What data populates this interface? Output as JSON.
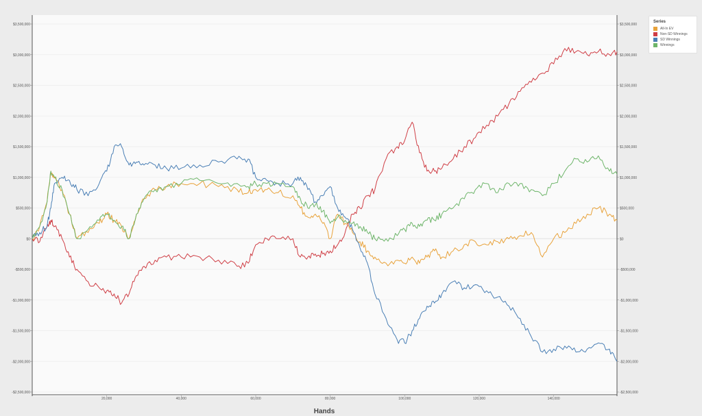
{
  "chart_data": {
    "type": "line",
    "xlabel": "Hands",
    "ylabel": "",
    "xlim": [
      0,
      157000
    ],
    "ylim": [
      -2500000,
      3500000
    ],
    "x_ticks": [
      20000,
      40000,
      60000,
      80000,
      100000,
      120000,
      140000
    ],
    "x_tick_labels": [
      "20,000",
      "40,000",
      "60,000",
      "80,000",
      "100,000",
      "120,000",
      "140,000"
    ],
    "y_ticks": [
      -2500000,
      -2000000,
      -1500000,
      -1000000,
      -500000,
      0,
      500000,
      1000000,
      1500000,
      2000000,
      2500000,
      3000000,
      3500000
    ],
    "y_tick_labels": [
      "-$2,500,000",
      "-$2,000,000",
      "-$1,500,000",
      "-$1,000,000",
      "-$500,000",
      "$0",
      "$500,000",
      "$1,000,000",
      "$1,500,000",
      "$2,000,000",
      "$2,500,000",
      "$3,000,000",
      "$3,500,000"
    ],
    "grid": true,
    "legend_title": "Series",
    "legend_position": "top-right",
    "x": [
      0,
      2000,
      4000,
      5000,
      6000,
      8000,
      10000,
      12000,
      15000,
      18000,
      20000,
      22000,
      24000,
      26000,
      28000,
      30000,
      33000,
      36000,
      40000,
      45000,
      50000,
      55000,
      58000,
      60000,
      63000,
      66000,
      70000,
      72000,
      74000,
      76000,
      78000,
      80000,
      82000,
      84000,
      86000,
      88000,
      90000,
      92000,
      95000,
      98000,
      100000,
      102000,
      104000,
      106000,
      108000,
      110000,
      113000,
      116000,
      119000,
      122000,
      125000,
      128000,
      131000,
      134000,
      137000,
      140000,
      143000,
      146000,
      149000,
      152000,
      155000,
      157000
    ],
    "series": [
      {
        "name": "All-In EV",
        "color": "#e8a23a",
        "values": [
          0,
          200000,
          600000,
          1100000,
          1000000,
          800000,
          400000,
          0,
          100000,
          250000,
          400000,
          300000,
          200000,
          0,
          400000,
          650000,
          800000,
          850000,
          900000,
          900000,
          850000,
          800000,
          750000,
          800000,
          800000,
          750000,
          700000,
          500000,
          350000,
          400000,
          250000,
          0,
          400000,
          250000,
          100000,
          -50000,
          -200000,
          -300000,
          -400000,
          -350000,
          -400000,
          -300000,
          -400000,
          -300000,
          -200000,
          -300000,
          -200000,
          -100000,
          -50000,
          -100000,
          -50000,
          0,
          50000,
          100000,
          -300000,
          0,
          100000,
          250000,
          400000,
          500000,
          400000,
          300000
        ]
      },
      {
        "name": "Non-SD Winnings",
        "color": "#cf3e45",
        "values": [
          0,
          -50000,
          200000,
          300000,
          200000,
          0,
          -300000,
          -500000,
          -700000,
          -800000,
          -850000,
          -900000,
          -1050000,
          -900000,
          -600000,
          -450000,
          -350000,
          -300000,
          -300000,
          -300000,
          -350000,
          -450000,
          -400000,
          -100000,
          0,
          0,
          0,
          -300000,
          -300000,
          -250000,
          -250000,
          -200000,
          -100000,
          100000,
          400000,
          500000,
          700000,
          800000,
          1300000,
          1500000,
          1600000,
          1900000,
          1400000,
          1100000,
          1100000,
          1150000,
          1300000,
          1500000,
          1650000,
          1850000,
          2000000,
          2200000,
          2400000,
          2550000,
          2700000,
          2850000,
          3100000,
          3050000,
          3000000,
          3050000,
          3000000,
          3050000
        ]
      },
      {
        "name": "SD Winnings",
        "color": "#4a7fb5",
        "values": [
          0,
          100000,
          200000,
          500000,
          900000,
          1000000,
          950000,
          800000,
          700000,
          900000,
          1100000,
          1500000,
          1500000,
          1200000,
          1250000,
          1200000,
          1200000,
          1150000,
          1150000,
          1200000,
          1250000,
          1300000,
          1300000,
          1000000,
          950000,
          900000,
          900000,
          1000000,
          800000,
          600000,
          700000,
          850000,
          500000,
          350000,
          150000,
          -150000,
          -400000,
          -900000,
          -1300000,
          -1650000,
          -1700000,
          -1500000,
          -1300000,
          -1100000,
          -1050000,
          -900000,
          -700000,
          -800000,
          -750000,
          -850000,
          -950000,
          -1100000,
          -1300000,
          -1600000,
          -1850000,
          -1800000,
          -1750000,
          -1850000,
          -1800000,
          -1700000,
          -1800000,
          -2000000
        ]
      },
      {
        "name": "Winnings",
        "color": "#6eb56a",
        "values": [
          0,
          200000,
          600000,
          1100000,
          1000000,
          800000,
          400000,
          0,
          150000,
          300000,
          400000,
          300000,
          200000,
          0,
          400000,
          650000,
          800000,
          850000,
          900000,
          950000,
          900000,
          900000,
          850000,
          900000,
          900000,
          900000,
          850000,
          650000,
          500000,
          550000,
          450000,
          250000,
          350000,
          300000,
          250000,
          200000,
          100000,
          0,
          0,
          50000,
          150000,
          250000,
          200000,
          300000,
          300000,
          400000,
          500000,
          650000,
          800000,
          900000,
          750000,
          900000,
          900000,
          800000,
          700000,
          900000,
          1100000,
          1300000,
          1250000,
          1350000,
          1100000,
          1050000
        ]
      }
    ]
  }
}
